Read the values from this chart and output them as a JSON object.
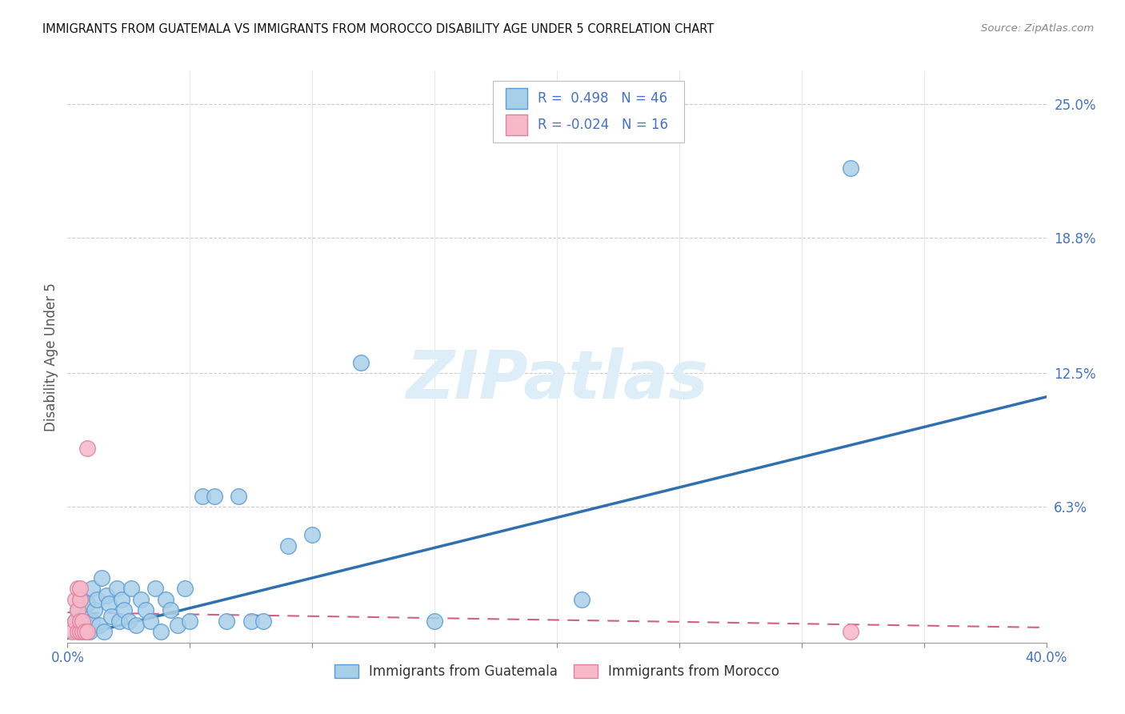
{
  "title": "IMMIGRANTS FROM GUATEMALA VS IMMIGRANTS FROM MOROCCO DISABILITY AGE UNDER 5 CORRELATION CHART",
  "source": "Source: ZipAtlas.com",
  "xlabel_blue": "Immigrants from Guatemala",
  "xlabel_pink": "Immigrants from Morocco",
  "ylabel": "Disability Age Under 5",
  "xlim": [
    0.0,
    0.4
  ],
  "ylim": [
    0.0,
    0.265
  ],
  "xtick_positions": [
    0.0,
    0.05,
    0.1,
    0.15,
    0.2,
    0.25,
    0.3,
    0.35,
    0.4
  ],
  "xtick_labels_show": {
    "0.0": "0.0%",
    "0.4": "40.0%"
  },
  "ytick_vals": [
    0.063,
    0.125,
    0.188,
    0.25
  ],
  "ytick_labels": [
    "6.3%",
    "12.5%",
    "18.8%",
    "25.0%"
  ],
  "legend_r_blue": "R =  0.498",
  "legend_n_blue": "N = 46",
  "legend_r_pink": "R = -0.024",
  "legend_n_pink": "N = 16",
  "blue_color": "#a8cfe8",
  "blue_edge_color": "#5b9bd5",
  "blue_line_color": "#3070b0",
  "pink_color": "#f7b8c8",
  "pink_edge_color": "#e080a0",
  "pink_line_color": "#d06080",
  "guatemala_x": [
    0.003,
    0.004,
    0.005,
    0.006,
    0.007,
    0.008,
    0.009,
    0.01,
    0.01,
    0.011,
    0.012,
    0.013,
    0.014,
    0.015,
    0.016,
    0.017,
    0.018,
    0.02,
    0.021,
    0.022,
    0.023,
    0.025,
    0.026,
    0.028,
    0.03,
    0.032,
    0.034,
    0.036,
    0.038,
    0.04,
    0.042,
    0.045,
    0.048,
    0.05,
    0.055,
    0.06,
    0.065,
    0.07,
    0.075,
    0.08,
    0.09,
    0.1,
    0.12,
    0.15,
    0.21,
    0.32
  ],
  "guatemala_y": [
    0.01,
    0.015,
    0.02,
    0.008,
    0.012,
    0.018,
    0.005,
    0.025,
    0.01,
    0.015,
    0.02,
    0.008,
    0.03,
    0.005,
    0.022,
    0.018,
    0.012,
    0.025,
    0.01,
    0.02,
    0.015,
    0.01,
    0.025,
    0.008,
    0.02,
    0.015,
    0.01,
    0.025,
    0.005,
    0.02,
    0.015,
    0.008,
    0.025,
    0.01,
    0.068,
    0.068,
    0.01,
    0.068,
    0.01,
    0.01,
    0.045,
    0.05,
    0.13,
    0.01,
    0.02,
    0.22
  ],
  "morocco_x": [
    0.002,
    0.003,
    0.003,
    0.004,
    0.004,
    0.004,
    0.005,
    0.005,
    0.005,
    0.005,
    0.006,
    0.006,
    0.007,
    0.008,
    0.008,
    0.32
  ],
  "morocco_y": [
    0.005,
    0.01,
    0.02,
    0.005,
    0.015,
    0.025,
    0.005,
    0.01,
    0.02,
    0.025,
    0.005,
    0.01,
    0.005,
    0.005,
    0.09,
    0.005
  ],
  "blue_trendline_x": [
    0.0,
    0.4
  ],
  "blue_trendline_y": [
    0.002,
    0.114
  ],
  "pink_trendline_x": [
    0.0,
    0.4
  ],
  "pink_trendline_y": [
    0.014,
    0.007
  ],
  "watermark_text": "ZIPatlas",
  "watermark_color": "#ddeef8",
  "background_color": "#ffffff",
  "grid_color": "#cccccc",
  "tick_color": "#4472c4",
  "title_color": "#111111",
  "source_color": "#888888",
  "ylabel_color": "#555555"
}
